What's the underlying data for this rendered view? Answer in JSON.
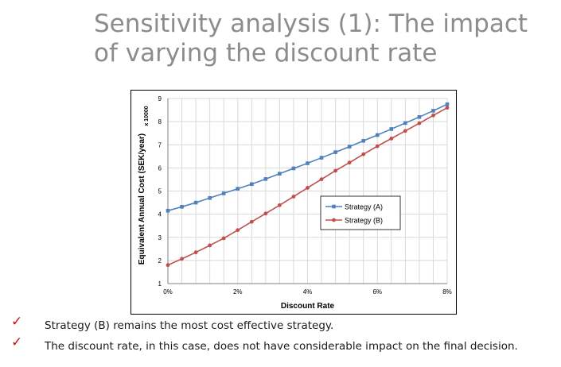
{
  "title": "Sensitivity analysis (1): The impact of varying the discount rate",
  "chart_data": {
    "type": "line",
    "xlabel": "Discount Rate",
    "ylabel": "Equivalent Annual Cost (SEK/year)",
    "y_multiplier_label": "x 10000",
    "xlim": [
      0,
      8
    ],
    "ylim": [
      1,
      9
    ],
    "x_ticks": [
      "0%",
      "2%",
      "4%",
      "6%",
      "8%"
    ],
    "y_ticks": [
      "1",
      "2",
      "3",
      "4",
      "5",
      "6",
      "7",
      "8",
      "9"
    ],
    "grid": true,
    "legend_position": "center-right",
    "x": [
      0,
      0.4,
      0.8,
      1.2,
      1.6,
      2.0,
      2.4,
      2.8,
      3.2,
      3.6,
      4.0,
      4.4,
      4.8,
      5.2,
      5.6,
      6.0,
      6.4,
      6.8,
      7.2,
      7.6,
      8.0
    ],
    "series": [
      {
        "name": "Strategy (A)",
        "color": "#4f81bd",
        "marker": "square",
        "values": [
          4.15,
          4.32,
          4.5,
          4.7,
          4.9,
          5.1,
          5.3,
          5.52,
          5.75,
          5.98,
          6.2,
          6.44,
          6.68,
          6.92,
          7.17,
          7.42,
          7.68,
          7.94,
          8.2,
          8.47,
          8.75
        ]
      },
      {
        "name": "Strategy (B)",
        "color": "#c0504d",
        "marker": "circle",
        "values": [
          1.8,
          2.07,
          2.35,
          2.65,
          2.96,
          3.31,
          3.67,
          4.03,
          4.39,
          4.76,
          5.14,
          5.51,
          5.88,
          6.23,
          6.59,
          6.94,
          7.27,
          7.6,
          7.93,
          8.27,
          8.6
        ]
      }
    ]
  },
  "bullets": [
    "Strategy (B) remains the most cost effective strategy.",
    "The discount rate, in this case, does not have considerable impact on the final decision."
  ],
  "colors": {
    "title": "#8c8c8c",
    "check": "#cc1111"
  }
}
